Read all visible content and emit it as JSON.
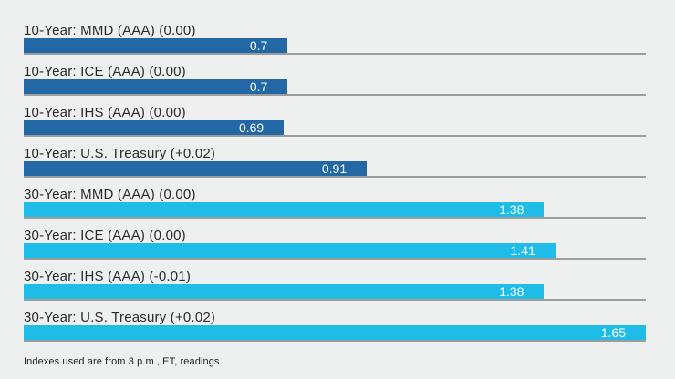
{
  "colors": {
    "background": "#EEEFEF",
    "bar_10_year": "#2268A4",
    "bar_30_year": "#1FBCE8",
    "gridline": "#9D9D9D",
    "value_text": "#FFFFFF",
    "label_text": "#2B2B2B"
  },
  "footnote": "Indexes used are from 3 p.m., ET, readings",
  "chart_data": {
    "type": "bar",
    "orientation": "horizontal",
    "title": "",
    "xlabel": "",
    "ylabel": "",
    "value_axis_max": 1.65,
    "grid": "baseline-per-row",
    "legend": "none",
    "categories": [
      "10-Year: MMD (AAA) (0.00)",
      "10-Year: ICE (AAA) (0.00)",
      "10-Year: IHS (AAA) (0.00)",
      "10-Year: U.S. Treasury (+0.02)",
      "30-Year: MMD (AAA) (0.00)",
      "30-Year: ICE (AAA) (0.00)",
      "30-Year: IHS (AAA) (-0.01)",
      "30-Year: U.S. Treasury (+0.02)"
    ],
    "rows": [
      {
        "label": "10-Year: MMD (AAA) (0.00)",
        "value": 0.7,
        "value_label": "0.7",
        "group": "10-Year",
        "color": "#2268A4"
      },
      {
        "label": "10-Year: ICE (AAA) (0.00)",
        "value": 0.7,
        "value_label": "0.7",
        "group": "10-Year",
        "color": "#2268A4"
      },
      {
        "label": "10-Year: IHS (AAA) (0.00)",
        "value": 0.69,
        "value_label": "0.69",
        "group": "10-Year",
        "color": "#2268A4"
      },
      {
        "label": "10-Year: U.S. Treasury (+0.02)",
        "value": 0.91,
        "value_label": "0.91",
        "group": "10-Year",
        "color": "#2268A4"
      },
      {
        "label": "30-Year: MMD (AAA) (0.00)",
        "value": 1.38,
        "value_label": "1.38",
        "group": "30-Year",
        "color": "#1FBCE8"
      },
      {
        "label": "30-Year: ICE (AAA) (0.00)",
        "value": 1.41,
        "value_label": "1.41",
        "group": "30-Year",
        "color": "#1FBCE8"
      },
      {
        "label": "30-Year: IHS (AAA) (-0.01)",
        "value": 1.38,
        "value_label": "1.38",
        "group": "30-Year",
        "color": "#1FBCE8"
      },
      {
        "label": "30-Year: U.S. Treasury (+0.02)",
        "value": 1.65,
        "value_label": "1.65",
        "group": "30-Year",
        "color": "#1FBCE8"
      }
    ]
  }
}
